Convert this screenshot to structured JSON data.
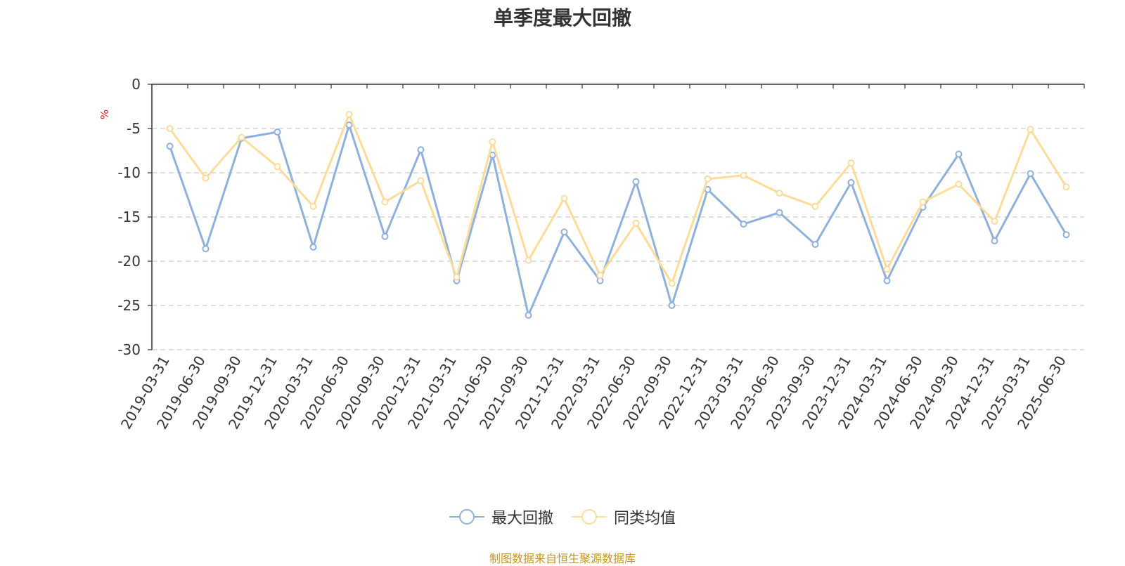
{
  "chart_data": {
    "type": "line",
    "title": "单季度最大回撤",
    "ylabel": "%",
    "ylim": [
      -30,
      0
    ],
    "yticks": [
      0,
      -5,
      -10,
      -15,
      -20,
      -25,
      -30
    ],
    "grid": true,
    "legend_position": "bottom-center",
    "categories": [
      "2019-03-31",
      "2019-06-30",
      "2019-09-30",
      "2019-12-31",
      "2020-03-31",
      "2020-06-30",
      "2020-09-30",
      "2020-12-31",
      "2021-03-31",
      "2021-06-30",
      "2021-09-30",
      "2021-12-31",
      "2022-03-31",
      "2022-06-30",
      "2022-09-30",
      "2022-12-31",
      "2023-03-31",
      "2023-06-30",
      "2023-09-30",
      "2023-12-31",
      "2024-03-31",
      "2024-06-30",
      "2024-09-30",
      "2024-12-31",
      "2025-03-31",
      "2025-06-30"
    ],
    "series": [
      {
        "name": "最大回撤",
        "color": "#8fb0dc",
        "values": [
          -7.0,
          -18.6,
          -6.1,
          -5.4,
          -18.4,
          -4.6,
          -17.2,
          -7.4,
          -22.2,
          -8.0,
          -26.1,
          -16.7,
          -22.2,
          -11.0,
          -25.0,
          -11.9,
          -15.8,
          -14.5,
          -18.1,
          -11.1,
          -22.2,
          -13.9,
          -7.9,
          -17.7,
          -10.1,
          -17.0
        ]
      },
      {
        "name": "同类均值",
        "color": "#fddc9a",
        "values": [
          -5.0,
          -10.6,
          -6.0,
          -9.3,
          -13.8,
          -3.4,
          -13.3,
          -10.9,
          -21.8,
          -6.5,
          -19.9,
          -12.9,
          -21.6,
          -15.7,
          -22.5,
          -10.7,
          -10.3,
          -12.3,
          -13.8,
          -8.9,
          -20.9,
          -13.3,
          -11.3,
          -15.5,
          -5.1,
          -11.6
        ]
      }
    ]
  },
  "source_text": "制图数据来自恒生聚源数据库",
  "source_color": "#c8941f",
  "axis_color": "#333333",
  "grid_color": "#cccccc"
}
